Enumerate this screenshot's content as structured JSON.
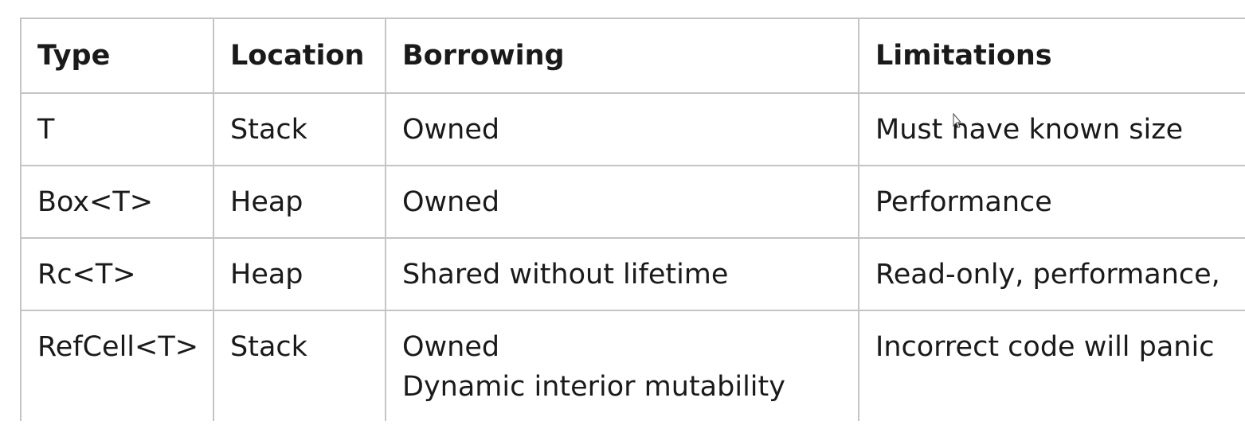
{
  "table": {
    "headers": [
      "Type",
      "Location",
      "Borrowing",
      "Limitations"
    ],
    "rows": [
      {
        "type": "T",
        "location": "Stack",
        "borrowing": [
          "Owned"
        ],
        "limitations": "Must have known size"
      },
      {
        "type": "Box<T>",
        "location": "Heap",
        "borrowing": [
          "Owned"
        ],
        "limitations": "Performance"
      },
      {
        "type": "Rc<T>",
        "location": "Heap",
        "borrowing": [
          "Shared without lifetime"
        ],
        "limitations": "Read-only, performance,"
      },
      {
        "type": "RefCell<T>",
        "location": "Stack",
        "borrowing": [
          "Owned",
          "Dynamic interior mutability"
        ],
        "limitations": "Incorrect code will panic"
      }
    ]
  },
  "cursor_icon": "mouse-pointer-icon"
}
